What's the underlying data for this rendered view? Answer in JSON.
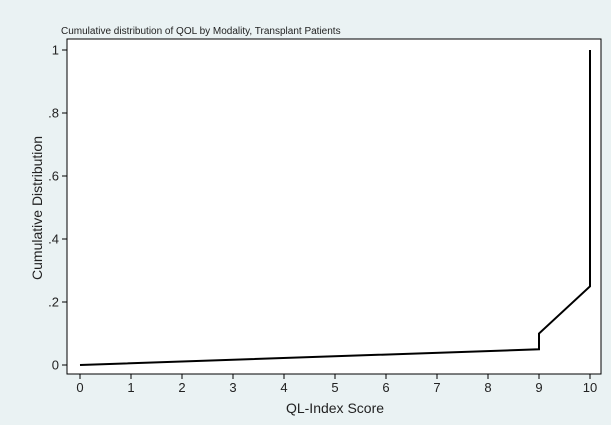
{
  "chart_data": {
    "type": "line",
    "title": "Cumulative distribution of QOL by Modality, Transplant Patients",
    "xlabel": "QL-Index Score",
    "ylabel": "Cumulative Distribution",
    "xlim": [
      0,
      10
    ],
    "ylim": [
      0,
      1
    ],
    "x_ticks": [
      0,
      1,
      2,
      3,
      4,
      5,
      6,
      7,
      8,
      9,
      10
    ],
    "x_tick_labels": [
      "0",
      "1",
      "2",
      "3",
      "4",
      "5",
      "6",
      "7",
      "8",
      "9",
      "10"
    ],
    "y_ticks": [
      0,
      0.2,
      0.4,
      0.6,
      0.8,
      1
    ],
    "y_tick_labels": [
      "0",
      ".2",
      ".4",
      ".6",
      ".8",
      "1"
    ],
    "grid": false,
    "series": [
      {
        "x": [
          0,
          9,
          9,
          9,
          10,
          10,
          10
        ],
        "y": [
          0,
          0.05,
          0.05,
          0.1,
          0.25,
          0.25,
          1
        ]
      }
    ],
    "colors": {
      "outer_background": "#eaf2f3",
      "plot_background": "#ffffff",
      "line": "#000000",
      "title": "#1a4a7a"
    }
  }
}
